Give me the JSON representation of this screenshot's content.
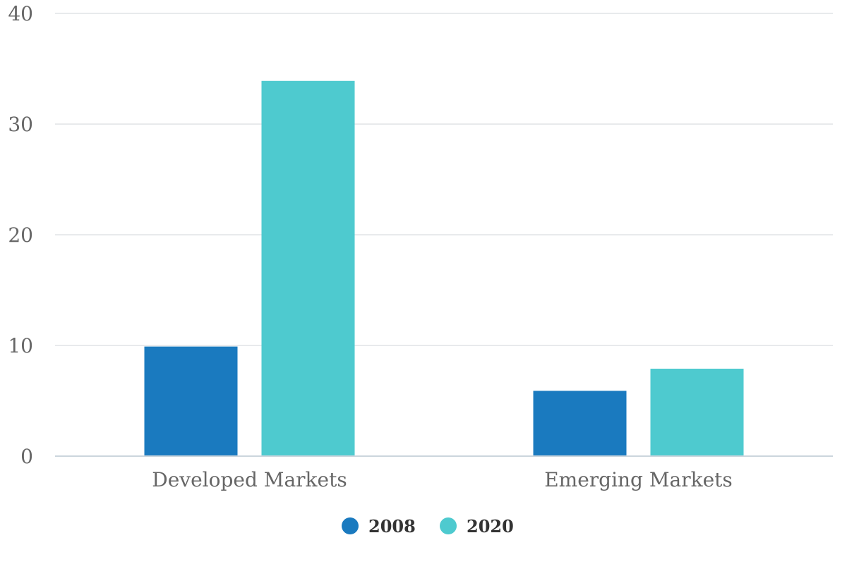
{
  "chart_data": {
    "type": "bar",
    "title": "",
    "xlabel": "",
    "ylabel": "",
    "categories": [
      "Developed Markets",
      "Emerging Markets"
    ],
    "series": [
      {
        "name": "2008",
        "values": [
          9.9,
          5.9
        ],
        "color": "#1a7abf"
      },
      {
        "name": "2020",
        "values": [
          33.9,
          7.9
        ],
        "color": "#4ecacf"
      }
    ],
    "ylim": [
      0,
      40
    ],
    "yticks": [
      0,
      10,
      20,
      30,
      40
    ],
    "grid": true,
    "legend_position": "bottom",
    "colors": {
      "grid": "#e0e3e6",
      "axis": "#ccd6dd"
    }
  }
}
